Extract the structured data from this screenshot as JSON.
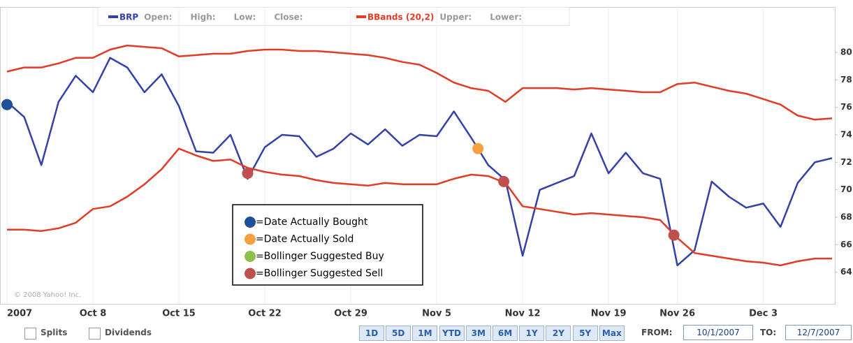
{
  "chart_data": {
    "type": "line",
    "header_legend": [
      {
        "name": "BRP",
        "color": "#3341a8",
        "fields": [
          "Open:",
          "High:",
          "Low:",
          "Close:"
        ]
      },
      {
        "name": "BBands (20,2)",
        "color": "#e23b26",
        "fields": [
          "Upper:",
          "Lower:"
        ]
      }
    ],
    "categories": [
      "2007",
      null,
      null,
      null,
      null,
      "Oct 8",
      null,
      null,
      null,
      null,
      "Oct 15",
      null,
      null,
      null,
      null,
      "Oct 22",
      null,
      null,
      null,
      null,
      "Oct 29",
      null,
      null,
      null,
      null,
      "Nov 5",
      null,
      null,
      null,
      null,
      "Nov 12",
      null,
      null,
      null,
      null,
      "Nov 19",
      null,
      null,
      null,
      "Nov 26",
      null,
      null,
      null,
      null,
      "Dec 3",
      null,
      null,
      null,
      null
    ],
    "series": [
      {
        "color": "#3341a8",
        "values": [
          76.4,
          75.3,
          71.8,
          76.4,
          78.3,
          77.1,
          79.6,
          78.9,
          77.1,
          78.4,
          76.1,
          72.8,
          72.7,
          74.0,
          70.8,
          73.1,
          74.0,
          73.9,
          72.4,
          73.0,
          74.1,
          73.3,
          74.4,
          73.2,
          74.0,
          73.9,
          75.7,
          73.8,
          71.8,
          70.7,
          65.2,
          70.0,
          70.5,
          71.0,
          74.1,
          71.2,
          72.7,
          71.2,
          70.8,
          64.5,
          65.6,
          70.6,
          69.5,
          68.7,
          69.0,
          67.3,
          70.5,
          72.0,
          72.3
        ]
      },
      {
        "color": "#e23b26",
        "values": [
          78.6,
          78.9,
          78.9,
          79.2,
          79.6,
          79.6,
          80.2,
          80.5,
          80.4,
          80.3,
          79.7,
          79.8,
          79.9,
          79.9,
          80.1,
          80.2,
          80.2,
          80.1,
          80.1,
          80.0,
          79.9,
          79.8,
          79.6,
          79.3,
          79.1,
          78.5,
          77.8,
          77.4,
          77.2,
          76.4,
          77.4,
          77.4,
          77.4,
          77.3,
          77.4,
          77.3,
          77.2,
          77.1,
          77.1,
          77.7,
          77.8,
          77.5,
          77.2,
          77.0,
          76.6,
          76.2,
          75.4,
          75.1,
          75.2
        ]
      },
      {
        "color": "#e23b26",
        "values": [
          67.1,
          67.1,
          67.0,
          67.2,
          67.6,
          68.6,
          68.8,
          69.5,
          70.4,
          71.5,
          73.0,
          72.5,
          72.1,
          72.2,
          71.6,
          71.3,
          71.1,
          71.0,
          70.7,
          70.5,
          70.4,
          70.3,
          70.5,
          70.4,
          70.4,
          70.4,
          70.8,
          71.1,
          71.0,
          70.5,
          68.8,
          68.6,
          68.4,
          68.2,
          68.3,
          68.2,
          68.1,
          68.0,
          67.8,
          66.5,
          65.4,
          65.2,
          65.0,
          64.8,
          64.7,
          64.5,
          64.8,
          65.0,
          65.0
        ]
      }
    ],
    "markers": [
      {
        "x": 0,
        "value": 76.2,
        "color": "#1f4e9a"
      },
      {
        "x": 27.4,
        "value": 73.0,
        "color": "#f7a040"
      },
      {
        "x": 14,
        "value": 71.2,
        "color": "#c0504d"
      },
      {
        "x": 28.9,
        "value": 70.6,
        "color": "#c0504d"
      },
      {
        "x": 38.8,
        "value": 66.7,
        "color": "#c0504d"
      }
    ],
    "legend": [
      {
        "label": "=Date Actually Bought",
        "color": "#1f4e9a"
      },
      {
        "label": "=Date Actually Sold",
        "color": "#f7a040"
      },
      {
        "label": "=Bollinger Suggested Buy",
        "color": "#8cc04b"
      },
      {
        "label": "=Bollinger Suggested Sell",
        "color": "#c0504d"
      }
    ],
    "ylim": [
      61.7,
      83.3
    ],
    "yticks": [
      64,
      66,
      68,
      70,
      72,
      74,
      76,
      78,
      80
    ],
    "grid": true,
    "copyright": "© 2008 Yahoo! Inc.",
    "controls": {
      "checkboxes": [
        "Splits",
        "Dividends"
      ],
      "ranges": [
        "1D",
        "5D",
        "1M",
        "YTD",
        "3M",
        "6M",
        "1Y",
        "2Y",
        "5Y",
        "Max"
      ],
      "from_label": "FROM:",
      "from": "10/1/2007",
      "to_label": "TO:",
      "to": "12/7/2007"
    }
  }
}
